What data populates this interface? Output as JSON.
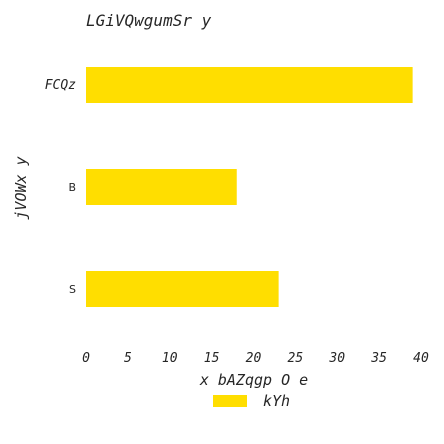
{
  "chart_data": {
    "type": "bar",
    "orientation": "horizontal",
    "title": "LGiVQwgumSr y",
    "xlabel": "x bAZqgp O e",
    "ylabel": "jVOWx y",
    "categories": [
      "FCQz",
      "B",
      "S"
    ],
    "series": [
      {
        "name": "kYh",
        "values": [
          39,
          18,
          23
        ],
        "color": "#ffde00"
      }
    ],
    "xlim": [
      0,
      40
    ],
    "xticks": [
      0,
      5,
      10,
      15,
      20,
      25,
      30,
      35,
      40
    ],
    "grid": false,
    "legend": "bottom-center"
  }
}
